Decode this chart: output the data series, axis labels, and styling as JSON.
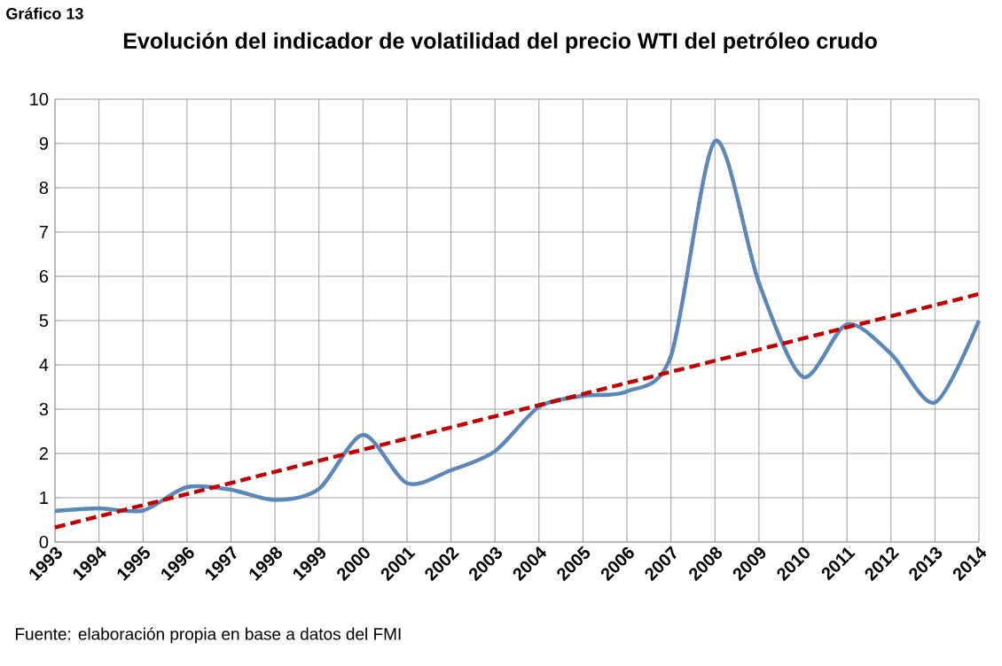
{
  "chart_data": {
    "type": "line",
    "title": "Evolución del indicador de volatilidad del precio WTI del petróleo crudo",
    "categories": [
      "1993",
      "1994",
      "1995",
      "1996",
      "1997",
      "1998",
      "1999",
      "2000",
      "2001",
      "2002",
      "2003",
      "2004",
      "2005",
      "2006",
      "2007",
      "2008",
      "2009",
      "2010",
      "2011",
      "2012",
      "2013",
      "2014"
    ],
    "series": [
      {
        "color": "#5b87b9",
        "line_style": "solid",
        "values": [
          0.7,
          0.76,
          0.71,
          1.24,
          1.18,
          0.95,
          1.2,
          2.42,
          1.33,
          1.62,
          2.05,
          3.05,
          3.3,
          3.4,
          4.2,
          9.05,
          5.85,
          3.73,
          4.92,
          4.25,
          3.15,
          5.0
        ]
      },
      {
        "color": "#c00000",
        "line_style": "dashed",
        "values": [
          0.33,
          null,
          null,
          null,
          null,
          null,
          null,
          null,
          null,
          null,
          null,
          null,
          null,
          null,
          null,
          null,
          null,
          null,
          null,
          null,
          null,
          5.6
        ]
      }
    ],
    "ylim": [
      0,
      10
    ],
    "yticks": [
      0,
      1,
      2,
      3,
      4,
      5,
      6,
      7,
      8,
      9,
      10
    ],
    "grid": true,
    "marker": "none",
    "annotations": [
      "Gráfico 13",
      "Fuente: elaboración propia en base a datos del FMI"
    ]
  }
}
